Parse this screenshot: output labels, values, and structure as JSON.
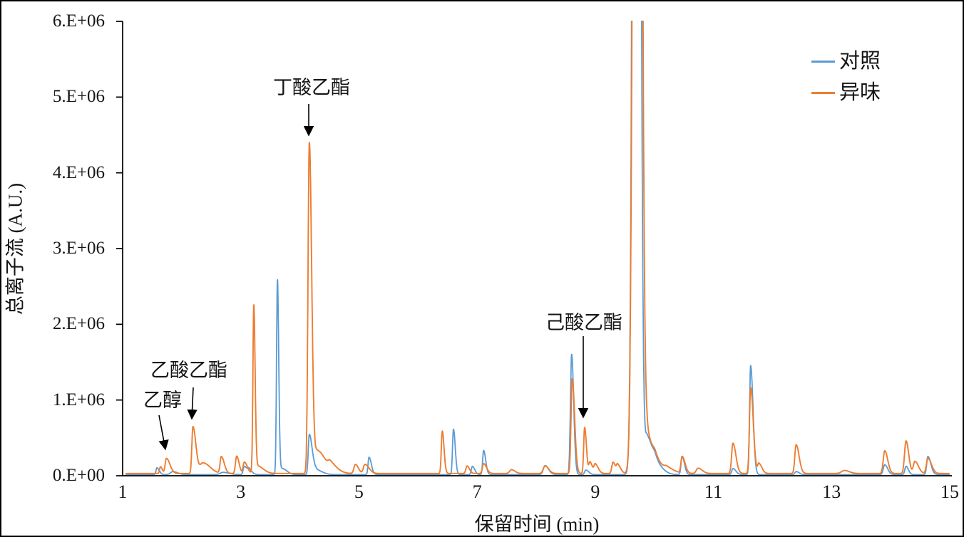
{
  "chart_data": {
    "type": "line",
    "description": "GC-MS total ion chromatogram, two overlaid traces",
    "title": "",
    "xlabel": "保留时间 (min)",
    "ylabel": "总离子流 (A.U.)",
    "xlim": [
      1,
      15
    ],
    "ylim": [
      0,
      6000000
    ],
    "x_ticks": [
      1,
      3,
      5,
      7,
      9,
      11,
      13,
      15
    ],
    "y_ticks": [
      0,
      1000000,
      2000000,
      3000000,
      4000000,
      5000000,
      6000000
    ],
    "y_tick_labels": [
      "0.E+00",
      "1.E+06",
      "2.E+06",
      "3.E+06",
      "4.E+06",
      "5.E+06",
      "6.E+06"
    ],
    "grid": false,
    "legend_position": "top-right",
    "offscale_peak": {
      "time_min": 9.7,
      "note": "both traces exceed top of y-axis (clipped at 6.E+06)"
    },
    "series": [
      {
        "name": "对照",
        "color": "#5B9BD5",
        "baseline": 15000,
        "peak_format": [
          "retention_time_min",
          "height_AU",
          "sigma_left_min",
          "sigma_right_min"
        ],
        "peaks": [
          [
            1.58,
            90000,
            0.015,
            0.04
          ],
          [
            1.85,
            40000,
            0.04,
            0.08
          ],
          [
            2.7,
            30000,
            0.05,
            0.1
          ],
          [
            3.06,
            110000,
            0.02,
            0.05
          ],
          [
            3.14,
            60000,
            0.02,
            0.05
          ],
          [
            3.62,
            2580000,
            0.015,
            0.022
          ],
          [
            3.7,
            80000,
            0.03,
            0.08
          ],
          [
            4.16,
            530000,
            0.018,
            0.05
          ],
          [
            4.28,
            60000,
            0.04,
            0.1
          ],
          [
            5.17,
            230000,
            0.016,
            0.04
          ],
          [
            6.6,
            600000,
            0.016,
            0.03
          ],
          [
            6.92,
            110000,
            0.018,
            0.04
          ],
          [
            7.11,
            320000,
            0.016,
            0.035
          ],
          [
            8.15,
            120000,
            0.03,
            0.06
          ],
          [
            8.6,
            1590000,
            0.02,
            0.035
          ],
          [
            8.84,
            60000,
            0.02,
            0.05
          ],
          [
            9.695,
            30000000,
            0.045,
            0.05
          ],
          [
            9.88,
            500000,
            0.035,
            0.09
          ],
          [
            10.02,
            130000,
            0.04,
            0.12
          ],
          [
            10.47,
            240000,
            0.018,
            0.04
          ],
          [
            11.33,
            80000,
            0.02,
            0.05
          ],
          [
            11.63,
            1440000,
            0.018,
            0.04
          ],
          [
            12.4,
            40000,
            0.02,
            0.05
          ],
          [
            13.9,
            130000,
            0.025,
            0.05
          ],
          [
            14.26,
            110000,
            0.02,
            0.04
          ],
          [
            14.63,
            240000,
            0.02,
            0.05
          ]
        ]
      },
      {
        "name": "异味",
        "color": "#ED7D31",
        "baseline": 30000,
        "peak_format": [
          "retention_time_min",
          "height_AU",
          "sigma_left_min",
          "sigma_right_min"
        ],
        "peaks": [
          [
            1.64,
            90000,
            0.015,
            0.03
          ],
          [
            1.74,
            200000,
            0.02,
            0.06
          ],
          [
            2.19,
            620000,
            0.018,
            0.05
          ],
          [
            2.36,
            140000,
            0.05,
            0.12
          ],
          [
            2.67,
            220000,
            0.02,
            0.05
          ],
          [
            2.93,
            230000,
            0.02,
            0.04
          ],
          [
            3.06,
            150000,
            0.02,
            0.05
          ],
          [
            3.22,
            2200000,
            0.015,
            0.022
          ],
          [
            3.28,
            100000,
            0.04,
            0.1
          ],
          [
            4.16,
            4370000,
            0.022,
            0.04
          ],
          [
            4.3,
            300000,
            0.05,
            0.13
          ],
          [
            4.52,
            100000,
            0.04,
            0.12
          ],
          [
            4.94,
            120000,
            0.025,
            0.05
          ],
          [
            5.1,
            120000,
            0.025,
            0.07
          ],
          [
            6.41,
            560000,
            0.016,
            0.03
          ],
          [
            6.83,
            100000,
            0.02,
            0.04
          ],
          [
            7.11,
            130000,
            0.02,
            0.05
          ],
          [
            7.58,
            50000,
            0.03,
            0.06
          ],
          [
            8.15,
            100000,
            0.03,
            0.06
          ],
          [
            8.61,
            1250000,
            0.02,
            0.04
          ],
          [
            8.82,
            610000,
            0.016,
            0.03
          ],
          [
            8.91,
            150000,
            0.018,
            0.04
          ],
          [
            9.0,
            120000,
            0.02,
            0.05
          ],
          [
            9.3,
            150000,
            0.02,
            0.04
          ],
          [
            9.38,
            110000,
            0.02,
            0.05
          ],
          [
            9.71,
            30000000,
            0.05,
            0.055
          ],
          [
            9.88,
            500000,
            0.035,
            0.09
          ],
          [
            10.02,
            150000,
            0.04,
            0.12
          ],
          [
            10.22,
            60000,
            0.05,
            0.12
          ],
          [
            10.47,
            220000,
            0.02,
            0.05
          ],
          [
            10.74,
            70000,
            0.03,
            0.07
          ],
          [
            11.33,
            400000,
            0.022,
            0.05
          ],
          [
            11.63,
            1130000,
            0.02,
            0.045
          ],
          [
            11.77,
            130000,
            0.02,
            0.05
          ],
          [
            12.4,
            380000,
            0.022,
            0.05
          ],
          [
            13.22,
            40000,
            0.05,
            0.08
          ],
          [
            13.9,
            300000,
            0.025,
            0.05
          ],
          [
            14.26,
            430000,
            0.025,
            0.045
          ],
          [
            14.41,
            160000,
            0.025,
            0.06
          ],
          [
            14.63,
            200000,
            0.025,
            0.06
          ]
        ]
      }
    ],
    "annotations": [
      {
        "label": "乙醇",
        "time_min": 1.74,
        "peak_height_AU": 200000
      },
      {
        "label": "乙酸乙酯",
        "time_min": 2.19,
        "peak_height_AU": 620000
      },
      {
        "label": "丁酸乙酯",
        "time_min": 4.16,
        "peak_height_AU": 4400000
      },
      {
        "label": "己酸乙酯",
        "time_min": 8.82,
        "peak_height_AU": 640000
      }
    ]
  },
  "legend": {
    "items": [
      {
        "label": "对照"
      },
      {
        "label": "异味"
      }
    ]
  }
}
